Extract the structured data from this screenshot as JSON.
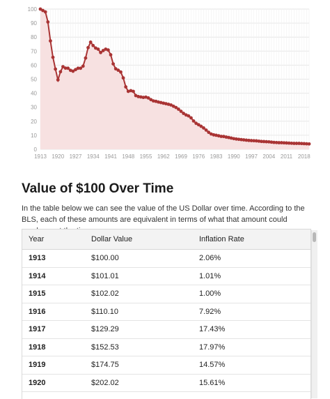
{
  "chart_data": {
    "type": "line",
    "title": "",
    "xlabel": "",
    "ylabel": "",
    "ylim": [
      0,
      100
    ],
    "xlim": [
      1913,
      2020
    ],
    "y_ticks": [
      0,
      10,
      20,
      30,
      40,
      50,
      60,
      70,
      80,
      90,
      100
    ],
    "x_tick_labels": [
      "1913",
      "1920",
      "1927",
      "1934",
      "1941",
      "1948",
      "1955",
      "1962",
      "1969",
      "1976",
      "1983",
      "1990",
      "1997",
      "2004",
      "2011",
      "2018"
    ],
    "grid": true,
    "series": [
      {
        "color": "#a93434",
        "fill_color": "#f7e1e1",
        "x": [
          1913,
          1914,
          1915,
          1916,
          1917,
          1918,
          1919,
          1920,
          1921,
          1922,
          1923,
          1924,
          1925,
          1926,
          1927,
          1928,
          1929,
          1930,
          1931,
          1932,
          1933,
          1934,
          1935,
          1936,
          1937,
          1938,
          1939,
          1940,
          1941,
          1942,
          1943,
          1944,
          1945,
          1946,
          1947,
          1948,
          1949,
          1950,
          1951,
          1952,
          1953,
          1954,
          1955,
          1956,
          1957,
          1958,
          1959,
          1960,
          1961,
          1962,
          1963,
          1964,
          1965,
          1966,
          1967,
          1968,
          1969,
          1970,
          1971,
          1972,
          1973,
          1974,
          1975,
          1976,
          1977,
          1978,
          1979,
          1980,
          1981,
          1982,
          1983,
          1984,
          1985,
          1986,
          1987,
          1988,
          1989,
          1990,
          1991,
          1992,
          1993,
          1994,
          1995,
          1996,
          1997,
          1998,
          1999,
          2000,
          2001,
          2002,
          2003,
          2004,
          2005,
          2006,
          2007,
          2008,
          2009,
          2010,
          2011,
          2012,
          2013,
          2014,
          2015,
          2016,
          2017,
          2018,
          2019,
          2020
        ],
        "y": [
          100.0,
          99.0,
          98.0,
          90.8,
          77.3,
          65.6,
          57.2,
          49.5,
          55.3,
          58.9,
          57.9,
          57.8,
          56.3,
          55.7,
          56.8,
          57.8,
          57.8,
          59.3,
          65.1,
          72.5,
          76.4,
          74.0,
          72.2,
          71.4,
          69.0,
          70.4,
          71.4,
          70.8,
          67.4,
          60.9,
          57.4,
          56.4,
          55.1,
          50.9,
          44.5,
          41.3,
          41.8,
          41.3,
          38.3,
          37.6,
          37.3,
          37.0,
          37.2,
          36.6,
          35.4,
          34.5,
          34.2,
          33.7,
          33.3,
          32.9,
          32.5,
          32.1,
          31.6,
          30.7,
          29.8,
          28.6,
          27.1,
          25.6,
          24.5,
          23.8,
          22.4,
          20.2,
          18.5,
          17.5,
          16.4,
          15.2,
          13.7,
          12.1,
          10.9,
          10.3,
          10.0,
          9.6,
          9.2,
          9.1,
          8.7,
          8.4,
          8.0,
          7.6,
          7.3,
          7.1,
          6.9,
          6.7,
          6.5,
          6.3,
          6.2,
          6.1,
          6.0,
          5.8,
          5.6,
          5.5,
          5.4,
          5.3,
          5.1,
          4.9,
          4.8,
          4.7,
          4.7,
          4.6,
          4.5,
          4.4,
          4.3,
          4.2,
          4.2,
          4.2,
          4.1,
          4.0,
          3.9,
          3.8
        ]
      }
    ]
  },
  "content": {
    "section_title": "Value of $100 Over Time",
    "intro": "In the table below we can see the value of the US Dollar over time. According to the BLS, each of these amounts are equivalent in terms of what that amount could purchase at the time."
  },
  "table": {
    "headers": [
      "Year",
      "Dollar Value",
      "Inflation Rate"
    ],
    "rows": [
      [
        "1913",
        "$100.00",
        "2.06%"
      ],
      [
        "1914",
        "$101.01",
        "1.01%"
      ],
      [
        "1915",
        "$102.02",
        "1.00%"
      ],
      [
        "1916",
        "$110.10",
        "7.92%"
      ],
      [
        "1917",
        "$129.29",
        "17.43%"
      ],
      [
        "1918",
        "$152.53",
        "17.97%"
      ],
      [
        "1919",
        "$174.75",
        "14.57%"
      ],
      [
        "1920",
        "$202.02",
        "15.61%"
      ]
    ]
  }
}
